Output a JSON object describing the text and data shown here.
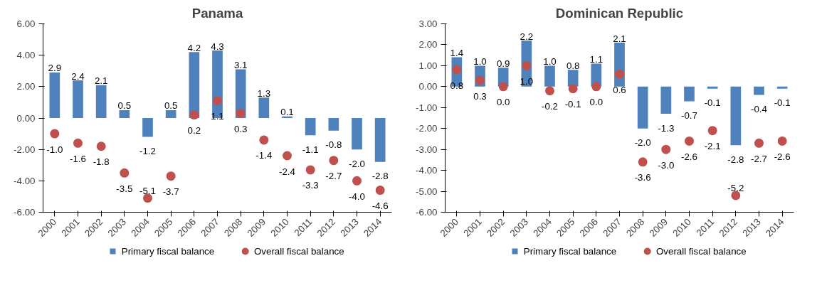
{
  "chart_data": [
    {
      "type": "bar",
      "title": "Panama",
      "categories": [
        "2000",
        "2001",
        "2002",
        "2003",
        "2004",
        "2005",
        "2006",
        "2007",
        "2008",
        "2009",
        "2010",
        "2011",
        "2012",
        "2013",
        "2014"
      ],
      "ylim": [
        -6,
        6
      ],
      "yticks": [
        {
          "value": -6,
          "label": "-6.00"
        },
        {
          "value": -4,
          "label": "-4.00"
        },
        {
          "value": -2,
          "label": "-2.00"
        },
        {
          "value": 0,
          "label": "0.00"
        },
        {
          "value": 2,
          "label": "2.00"
        },
        {
          "value": 4,
          "label": "4.00"
        },
        {
          "value": 6,
          "label": "6.00"
        }
      ],
      "legend": "bottom",
      "grid": false,
      "series": [
        {
          "name": "Primary fiscal balance",
          "type": "bar",
          "color": "#4f81bd",
          "values": [
            2.9,
            2.4,
            2.1,
            0.5,
            -1.2,
            0.5,
            4.2,
            4.3,
            3.1,
            1.3,
            0.1,
            -1.1,
            -0.8,
            -2.0,
            -2.8
          ],
          "value_labels": [
            "2.9",
            "2.4",
            "2.1",
            "0.5",
            "-1.2",
            "0.5",
            "4.2",
            "4.3",
            "3.1",
            "1.3",
            "0.1",
            "-1.1",
            "-0.8",
            "-2.0",
            "-2.8"
          ]
        },
        {
          "name": "Overall fiscal balance",
          "type": "scatter",
          "marker": "circle",
          "color": "#c0504d",
          "values": [
            -1.0,
            -1.6,
            -1.8,
            -3.5,
            -5.1,
            -3.7,
            0.2,
            1.1,
            0.3,
            -1.4,
            -2.4,
            -3.3,
            -2.7,
            -4.0,
            -4.6
          ],
          "value_labels": [
            "-1.0",
            "-1.6",
            "-1.8",
            "-3.5",
            "-5.1",
            "-3.7",
            "0.2",
            "1.1",
            "0.3",
            "-1.4",
            "-2.4",
            "-3.3",
            "-2.7",
            "-4.0",
            "-4.6"
          ]
        }
      ]
    },
    {
      "type": "bar",
      "title": "Dominican Republic",
      "categories": [
        "2000",
        "2001",
        "2002",
        "2003",
        "2004",
        "2005",
        "2006",
        "2007",
        "2008",
        "2009",
        "2010",
        "2011",
        "2012",
        "2013",
        "2014"
      ],
      "ylim": [
        -6,
        3
      ],
      "yticks": [
        {
          "value": -6,
          "label": "-6.00"
        },
        {
          "value": -5,
          "label": "-5.00"
        },
        {
          "value": -4,
          "label": "-4.00"
        },
        {
          "value": -3,
          "label": "-3.00"
        },
        {
          "value": -2,
          "label": "-2.00"
        },
        {
          "value": -1,
          "label": "-1.00"
        },
        {
          "value": 0,
          "label": "0.00"
        },
        {
          "value": 1,
          "label": "1.00"
        },
        {
          "value": 2,
          "label": "2.00"
        },
        {
          "value": 3,
          "label": "3.00"
        }
      ],
      "legend": "bottom",
      "grid": false,
      "series": [
        {
          "name": "Primary fiscal balance",
          "type": "bar",
          "color": "#4f81bd",
          "values": [
            1.4,
            1.0,
            0.9,
            2.2,
            1.0,
            0.8,
            1.1,
            2.1,
            -2.0,
            -1.3,
            -0.7,
            -0.1,
            -2.8,
            -0.4,
            -0.1
          ],
          "value_labels": [
            "1.4",
            "1.0",
            "0.9",
            "2.2",
            "1.0",
            "0.8",
            "1.1",
            "2.1",
            "-2.0",
            "-1.3",
            "-0.7",
            "-0.1",
            "-2.8",
            "-0.4",
            "-0.1"
          ]
        },
        {
          "name": "Overall fiscal balance",
          "type": "scatter",
          "marker": "circle",
          "color": "#c0504d",
          "values": [
            0.8,
            0.3,
            0.0,
            1.0,
            -0.2,
            -0.1,
            0.0,
            0.6,
            -3.6,
            -3.0,
            -2.6,
            -2.1,
            -5.2,
            -2.7,
            -2.6
          ],
          "value_labels": [
            "0.8",
            "0.3",
            "0.0",
            "1.0",
            "-0.2",
            "-0.1",
            "0.0",
            "0.6",
            "-3.6",
            "-3.0",
            "-2.6",
            "-2.1",
            "-5.2",
            "-2.7",
            "-2.6"
          ]
        }
      ]
    }
  ]
}
